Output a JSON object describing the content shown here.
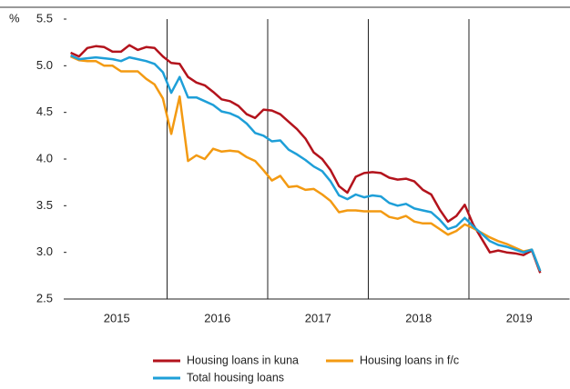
{
  "chart_data": {
    "type": "line",
    "y_label": "%",
    "year_labels": [
      "2015",
      "2016",
      "2017",
      "2018",
      "2019"
    ],
    "ylim": [
      2.5,
      5.5
    ],
    "yticks": [
      2.5,
      {
        "value": 3,
        "label": "3.0"
      },
      3.5,
      {
        "value": 4,
        "label": "4.0"
      },
      4.5,
      {
        "value": 5,
        "label": "5.0"
      },
      5.5
    ],
    "series": [
      {
        "name": "Housing loans in kuna",
        "color": "#b3131c",
        "values": [
          5.14,
          5.1,
          5.19,
          5.21,
          5.2,
          5.15,
          5.15,
          5.22,
          5.17,
          5.2,
          5.19,
          5.1,
          5.03,
          5.02,
          4.88,
          4.82,
          4.79,
          4.72,
          4.64,
          4.62,
          4.57,
          4.48,
          4.44,
          4.53,
          4.52,
          4.48,
          4.4,
          4.32,
          4.22,
          4.07,
          4.0,
          3.88,
          3.71,
          3.64,
          3.81,
          3.85,
          3.86,
          3.85,
          3.8,
          3.78,
          3.79,
          3.76,
          3.67,
          3.62,
          3.46,
          3.33,
          3.39,
          3.51,
          3.3,
          3.15,
          3.0,
          3.02,
          3.0,
          2.99,
          2.97,
          3.02,
          2.78
        ]
      },
      {
        "name": "Housing loans in f/c",
        "color": "#f39a12",
        "values": [
          5.1,
          5.06,
          5.05,
          5.05,
          5.0,
          5.0,
          4.94,
          4.94,
          4.94,
          4.86,
          4.8,
          4.65,
          4.27,
          4.67,
          3.98,
          4.04,
          4.0,
          4.11,
          4.08,
          4.09,
          4.08,
          4.02,
          3.98,
          3.88,
          3.77,
          3.82,
          3.7,
          3.71,
          3.67,
          3.68,
          3.62,
          3.55,
          3.43,
          3.45,
          3.45,
          3.44,
          3.44,
          3.44,
          3.38,
          3.36,
          3.39,
          3.33,
          3.31,
          3.31,
          3.25,
          3.19,
          3.23,
          3.3,
          3.26,
          3.21,
          3.16,
          3.12,
          3.09,
          3.05,
          3.01,
          3.03,
          2.8
        ]
      },
      {
        "name": "Total housing loans",
        "color": "#1e9fd8",
        "values": [
          5.11,
          5.07,
          5.08,
          5.09,
          5.08,
          5.07,
          5.05,
          5.09,
          5.07,
          5.05,
          5.02,
          4.93,
          4.71,
          4.88,
          4.66,
          4.66,
          4.62,
          4.58,
          4.51,
          4.49,
          4.45,
          4.38,
          4.28,
          4.25,
          4.19,
          4.2,
          4.1,
          4.05,
          3.99,
          3.92,
          3.87,
          3.76,
          3.61,
          3.57,
          3.62,
          3.59,
          3.61,
          3.6,
          3.53,
          3.5,
          3.52,
          3.47,
          3.45,
          3.43,
          3.35,
          3.25,
          3.28,
          3.37,
          3.28,
          3.2,
          3.12,
          3.08,
          3.06,
          3.03,
          3.0,
          3.03,
          2.8
        ]
      }
    ]
  }
}
